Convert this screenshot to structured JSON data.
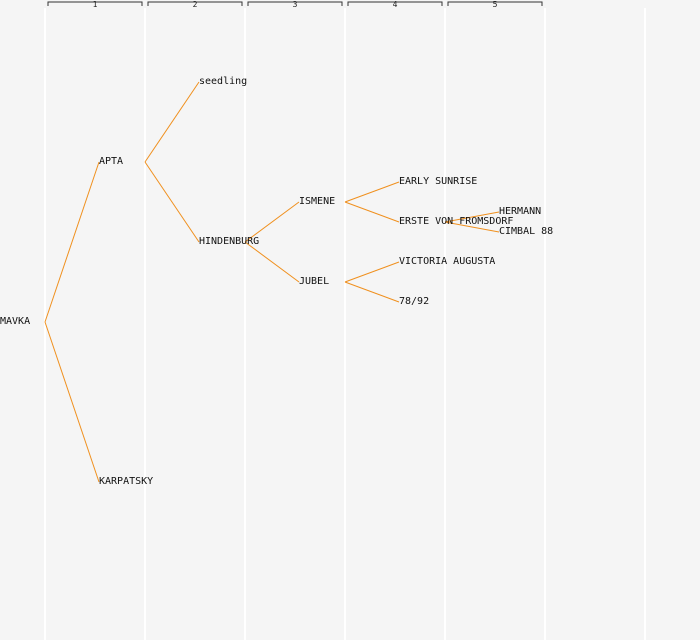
{
  "generations": [
    "1",
    "2",
    "3",
    "4",
    "5"
  ],
  "colors": {
    "link": "#f0901e",
    "background": "#f5f5f5",
    "column_line": "#ffffff",
    "bracket": "#333333"
  },
  "tree": {
    "name": "MAVKA",
    "children": [
      {
        "name": "APTA",
        "children": [
          {
            "name": "seedling"
          },
          {
            "name": "HINDENBURG",
            "children": [
              {
                "name": "ISMENE",
                "children": [
                  {
                    "name": "EARLY SUNRISE"
                  },
                  {
                    "name": "ERSTE VON FROMSDORF",
                    "children": [
                      {
                        "name": "HERMANN"
                      },
                      {
                        "name": "CIMBAL 88"
                      }
                    ]
                  }
                ]
              },
              {
                "name": "JUBEL",
                "children": [
                  {
                    "name": "VICTORIA AUGUSTA"
                  },
                  {
                    "name": "78/92"
                  }
                ]
              }
            ]
          }
        ]
      },
      {
        "name": "KARPATSKY"
      }
    ]
  }
}
